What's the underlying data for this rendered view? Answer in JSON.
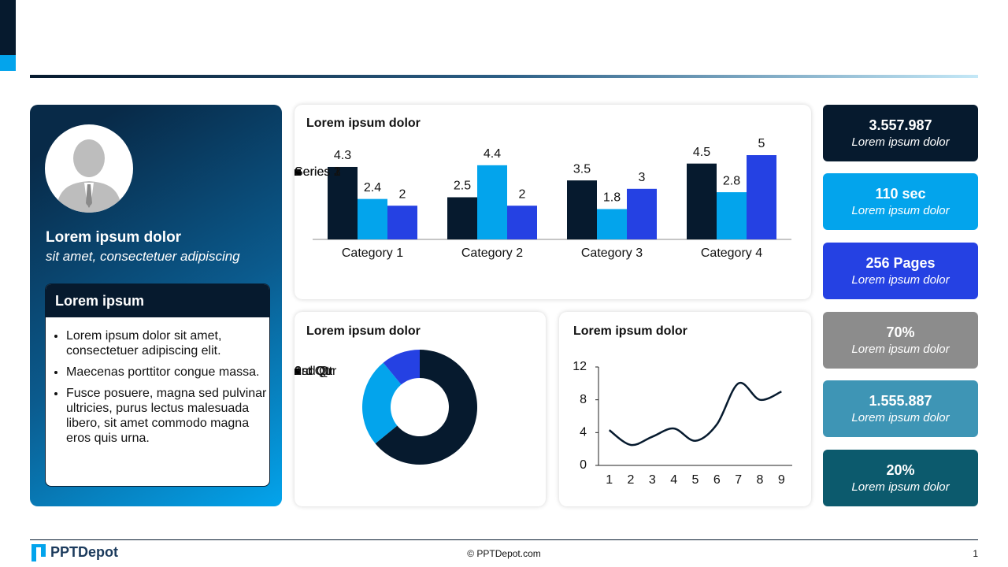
{
  "profile": {
    "name": "Lorem ipsum dolor",
    "subtitle": "sit amet, consectetuer adipiscing",
    "box_title": "Lorem ipsum",
    "bullets": [
      "Lorem ipsum dolor sit amet, consectetuer adipiscing elit.",
      "Maecenas porttitor congue massa.",
      "Fusce posuere, magna sed pulvinar ultricies, purus lectus malesuada libero, sit amet commodo magna eros quis urna."
    ]
  },
  "chart_data": [
    {
      "type": "bar",
      "title": "Lorem ipsum dolor",
      "categories": [
        "Category 1",
        "Category 2",
        "Category 3",
        "Category 4"
      ],
      "series": [
        {
          "name": "Series 1",
          "color": "#061a2e",
          "values": [
            4.3,
            2.5,
            3.5,
            4.5
          ]
        },
        {
          "name": "Series 2",
          "color": "#03a4ec",
          "values": [
            2.4,
            4.4,
            1.8,
            2.8
          ]
        },
        {
          "name": "Series 3",
          "color": "#2541e3",
          "values": [
            2,
            2,
            3,
            5
          ]
        }
      ]
    },
    {
      "type": "pie",
      "title": "Lorem ipsum dolor",
      "categories": [
        "1st Qtr",
        "2nd Qtr",
        "3rd Qtr"
      ],
      "values": [
        8.2,
        3.2,
        1.4
      ],
      "colors": [
        "#061a2e",
        "#03a4ec",
        "#2541e3"
      ]
    },
    {
      "type": "line",
      "title": "Lorem ipsum dolor",
      "categories": [
        "1",
        "2",
        "3",
        "4",
        "5",
        "6",
        "7",
        "8",
        "9"
      ],
      "values": [
        4.3,
        2.5,
        3.5,
        4.5,
        3,
        5,
        10,
        8,
        9
      ],
      "color": "#061a2e",
      "ylim": [
        0,
        12
      ],
      "yticks": [
        0,
        4,
        8,
        12
      ]
    }
  ],
  "kpis": [
    {
      "value": "3.557.987",
      "label": "Lorem ipsum dolor",
      "color": "#061a2e"
    },
    {
      "value": "110 sec",
      "label": "Lorem ipsum dolor",
      "color": "#03a4ec"
    },
    {
      "value": "256 Pages",
      "label": "Lorem ipsum dolor",
      "color": "#2541e3"
    },
    {
      "value": "70%",
      "label": "Lorem ipsum dolor",
      "color": "#8c8c8c"
    },
    {
      "value": "1.555.887",
      "label": "Lorem ipsum dolor",
      "color": "#3e95b5"
    },
    {
      "value": "20%",
      "label": "Lorem ipsum dolor",
      "color": "#0c5a6d"
    }
  ],
  "footer": {
    "brand": "PPTDepot",
    "copyright": "© PPTDepot.com",
    "page": "1"
  }
}
